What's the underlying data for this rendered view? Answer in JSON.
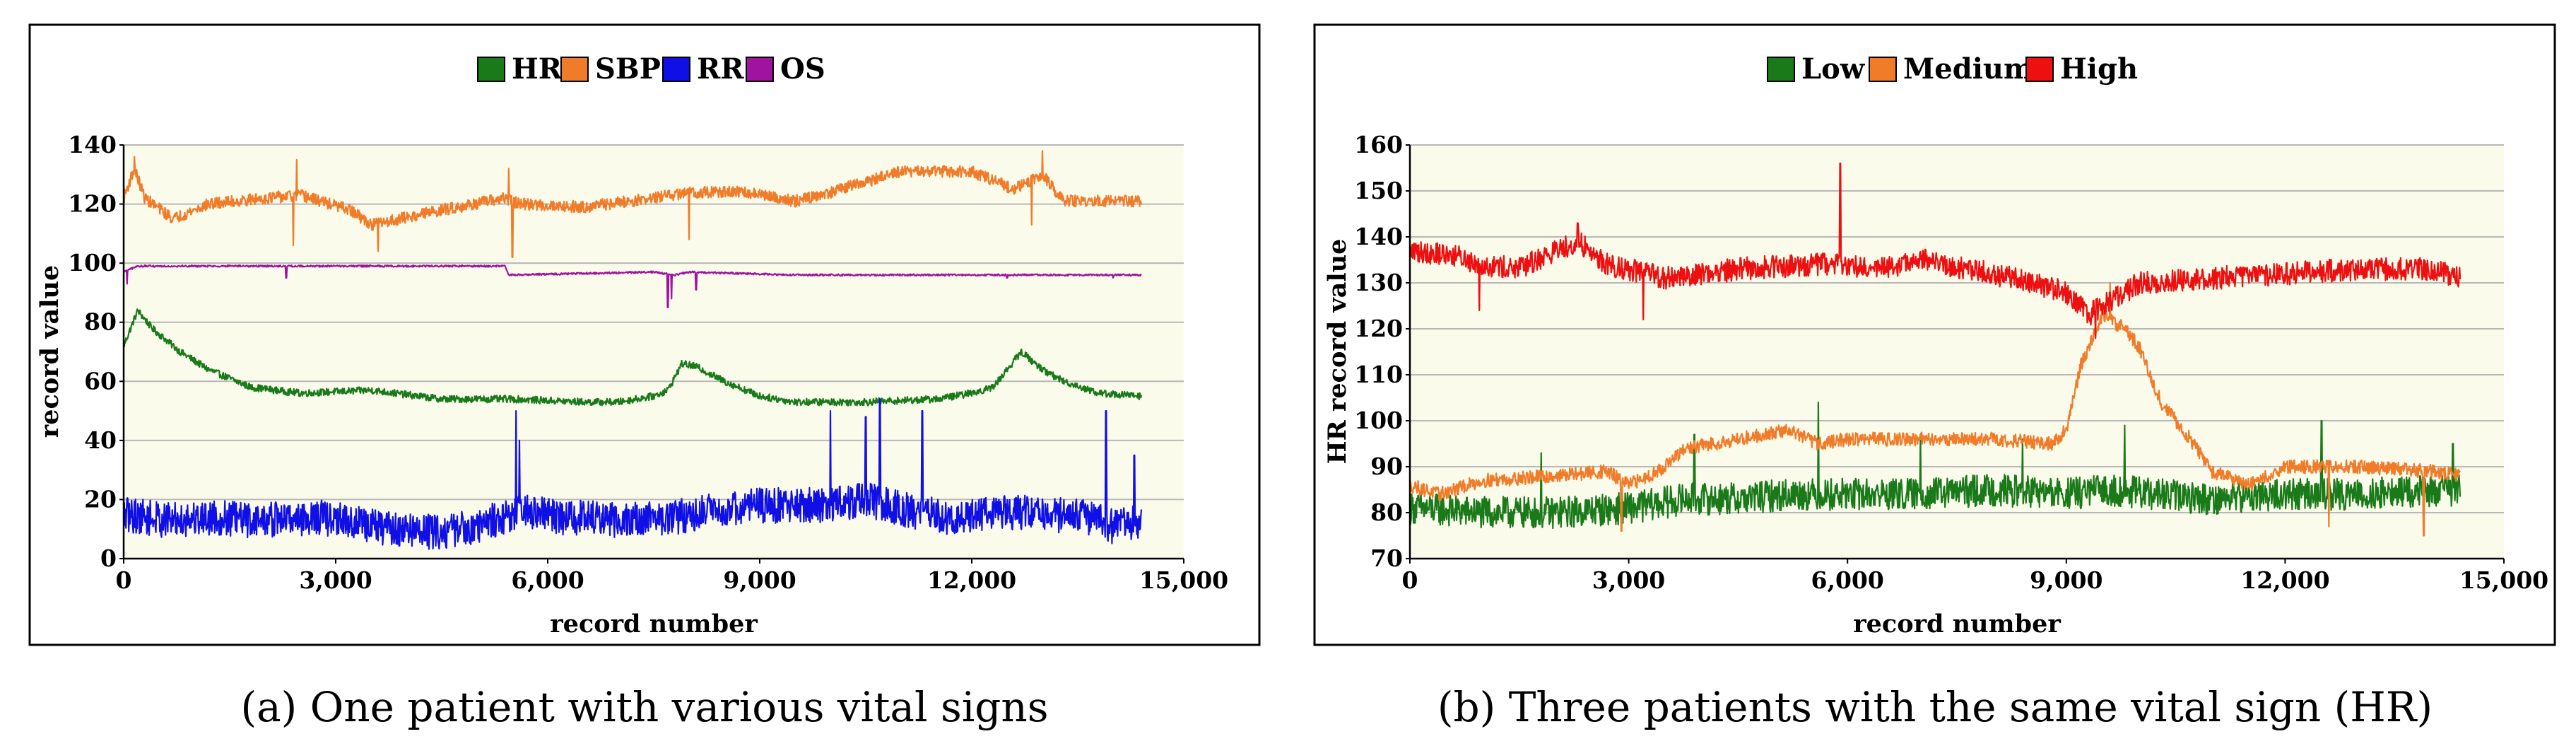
{
  "chart_data": [
    {
      "id": "a",
      "type": "line",
      "caption": "(a) One patient with various vital signs",
      "xlabel": "record number",
      "ylabel": "record value",
      "xlim": [
        0,
        15000
      ],
      "ylim": [
        0,
        140
      ],
      "xticks": [
        0,
        3000,
        6000,
        9000,
        12000,
        15000
      ],
      "xtick_labels": [
        "0",
        "3,000",
        "6,000",
        "9,000",
        "12,000",
        "15,000"
      ],
      "yticks": [
        0,
        20,
        40,
        60,
        80,
        100,
        120,
        140
      ],
      "ytick_labels": [
        "0",
        "20",
        "40",
        "60",
        "80",
        "100",
        "120",
        "140"
      ],
      "grid": true,
      "legend_position": "top-center",
      "series": [
        {
          "name": "HR",
          "color": "#1a7a1a",
          "x": [
            0,
            200,
            400,
            800,
            1200,
            1800,
            2500,
            3500,
            4500,
            5500,
            6500,
            7000,
            7500,
            7700,
            7900,
            8100,
            8500,
            9000,
            9500,
            10500,
            11500,
            12000,
            12300,
            12700,
            13000,
            13300,
            13800,
            14400
          ],
          "values": [
            72,
            84,
            78,
            70,
            64,
            58,
            56,
            57,
            54,
            54,
            53,
            53,
            55,
            57,
            66,
            65,
            60,
            55,
            53,
            53,
            54,
            56,
            58,
            70,
            64,
            60,
            56,
            55
          ],
          "noise": 1.2,
          "spikes": []
        },
        {
          "name": "SBP",
          "color": "#f07c2a",
          "x": [
            0,
            150,
            300,
            700,
            1200,
            2000,
            2500,
            3200,
            3500,
            4500,
            5400,
            5600,
            6500,
            7500,
            8000,
            8800,
            9500,
            10000,
            11000,
            12000,
            12600,
            13000,
            13300,
            14400
          ],
          "values": [
            122,
            132,
            122,
            115,
            120,
            122,
            123,
            118,
            113,
            118,
            122,
            120,
            119,
            122,
            124,
            124,
            121,
            124,
            131,
            131,
            125,
            130,
            121,
            121
          ],
          "noise": 2.0,
          "spikes": [
            [
              150,
              136
            ],
            [
              2400,
              106
            ],
            [
              2450,
              135
            ],
            [
              3600,
              104
            ],
            [
              5450,
              132
            ],
            [
              5500,
              102
            ],
            [
              8000,
              108
            ],
            [
              12850,
              113
            ],
            [
              13000,
              138
            ]
          ]
        },
        {
          "name": "RR",
          "color": "#1010e6",
          "x": [
            0,
            600,
            1200,
            1800,
            2800,
            3800,
            4400,
            5000,
            5600,
            6200,
            7000,
            7800,
            8500,
            9000,
            9500,
            10000,
            10500,
            11000,
            11400,
            11800,
            12400,
            13000,
            13600,
            14000,
            14400
          ],
          "values": [
            15,
            13,
            14,
            13,
            14,
            10,
            9,
            11,
            16,
            14,
            13,
            14,
            17,
            18,
            18,
            18,
            20,
            17,
            15,
            13,
            16,
            15,
            14,
            11,
            13
          ],
          "noise": 6.0,
          "spikes": [
            [
              5550,
              50
            ],
            [
              5600,
              40
            ],
            [
              10000,
              50
            ],
            [
              10500,
              48
            ],
            [
              10700,
              54
            ],
            [
              11300,
              50
            ],
            [
              13900,
              50
            ],
            [
              14300,
              35
            ]
          ]
        },
        {
          "name": "OS",
          "color": "#a012a0",
          "x": [
            0,
            200,
            1500,
            5400,
            5450,
            7500,
            7800,
            8000,
            9500,
            11000,
            12000,
            14400
          ],
          "values": [
            97,
            99,
            99,
            99,
            96,
            97,
            96,
            97,
            96,
            96,
            96,
            96
          ],
          "noise": 0.3,
          "spikes": [
            [
              50,
              93
            ],
            [
              2300,
              95
            ],
            [
              7700,
              85
            ],
            [
              7750,
              88
            ],
            [
              8100,
              91
            ],
            [
              12500,
              95
            ],
            [
              14000,
              95
            ]
          ]
        }
      ]
    },
    {
      "id": "b",
      "type": "line",
      "caption": "(b) Three patients with the same vital sign (HR)",
      "xlabel": "record number",
      "ylabel": "HR record value",
      "xlim": [
        0,
        15000
      ],
      "ylim": [
        70,
        160
      ],
      "xticks": [
        0,
        3000,
        6000,
        9000,
        12000,
        15000
      ],
      "xtick_labels": [
        "0",
        "3,000",
        "6,000",
        "9,000",
        "12,000",
        "15,000"
      ],
      "yticks": [
        70,
        80,
        90,
        100,
        110,
        120,
        130,
        140,
        150,
        160
      ],
      "ytick_labels": [
        "70",
        "80",
        "90",
        "100",
        "110",
        "120",
        "130",
        "140",
        "150",
        "160"
      ],
      "grid": true,
      "legend_position": "top-center",
      "series": [
        {
          "name": "Low",
          "color": "#1a7a1a",
          "x": [
            0,
            1000,
            2000,
            3000,
            3800,
            4500,
            5200,
            6000,
            7000,
            8000,
            9000,
            9600,
            10200,
            11000,
            12000,
            13000,
            14400
          ],
          "values": [
            81,
            80,
            80,
            81,
            83,
            83,
            84,
            84,
            84,
            85,
            84,
            85,
            84,
            83,
            84,
            84,
            85
          ],
          "noise": 3.5,
          "spikes": [
            [
              1800,
              93
            ],
            [
              3900,
              97
            ],
            [
              5600,
              104
            ],
            [
              7000,
              97
            ],
            [
              8400,
              96
            ],
            [
              9800,
              99
            ],
            [
              12500,
              100
            ],
            [
              14300,
              95
            ]
          ]
        },
        {
          "name": "Medium",
          "color": "#f07c2a",
          "x": [
            0,
            400,
            1000,
            2000,
            2700,
            3000,
            3400,
            3800,
            4500,
            5200,
            5600,
            6000,
            7000,
            8000,
            8800,
            9000,
            9200,
            9500,
            9800,
            10000,
            10300,
            10700,
            11000,
            11500,
            12000,
            13000,
            14000,
            14400
          ],
          "values": [
            86,
            84,
            87,
            88,
            89,
            86,
            89,
            94,
            96,
            98,
            95,
            96,
            96,
            96,
            95,
            98,
            112,
            123,
            120,
            116,
            104,
            96,
            89,
            86,
            90,
            90,
            89,
            88
          ],
          "noise": 1.5,
          "spikes": [
            [
              2900,
              76
            ],
            [
              9600,
              130
            ],
            [
              12600,
              77
            ],
            [
              13900,
              75
            ]
          ]
        },
        {
          "name": "High",
          "color": "#ee1010",
          "x": [
            0,
            600,
            1000,
            1500,
            2000,
            2300,
            2700,
            3000,
            3500,
            4500,
            5500,
            6000,
            6500,
            7000,
            8000,
            8500,
            9000,
            9300,
            9600,
            10000,
            11000,
            12000,
            13000,
            14000,
            14400
          ],
          "values": [
            137,
            136,
            134,
            133,
            137,
            139,
            134,
            133,
            131,
            133,
            134,
            134,
            133,
            135,
            132,
            130,
            128,
            123,
            126,
            130,
            131,
            132,
            133,
            133,
            131
          ],
          "noise": 2.5,
          "spikes": [
            [
              950,
              124
            ],
            [
              2300,
              143
            ],
            [
              3200,
              122
            ],
            [
              5900,
              156
            ],
            [
              9400,
              118
            ]
          ]
        }
      ]
    }
  ]
}
